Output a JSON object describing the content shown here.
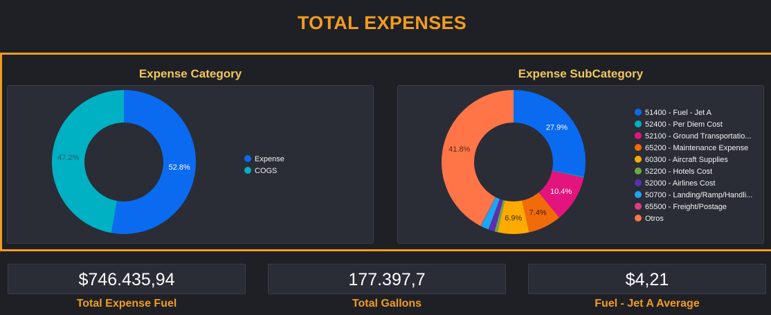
{
  "header": {
    "title": "TOTAL EXPENSES"
  },
  "charts": {
    "category_title": "Expense Category",
    "subcategory_title": "Expense SubCategory"
  },
  "chart_data": [
    {
      "type": "pie",
      "title": "Expense Category",
      "categories": [
        "Expense",
        "COGS"
      ],
      "values": [
        52.8,
        47.2
      ],
      "labels": [
        "52.8%",
        "47.2%"
      ],
      "colors": [
        "#0a6bf0",
        "#00b1c4"
      ],
      "legend_position": "right"
    },
    {
      "type": "pie",
      "title": "Expense SubCategory",
      "categories": [
        "51400 - Fuel - Jet A",
        "52400 - Per Diem Cost",
        "52100 - Ground Transportatio...",
        "65200 - Maintenance Expense",
        "60300 - Aircraft Supplies",
        "52200 - Hotels Cost",
        "52000 - Airlines Cost",
        "50700 - Landing/Ramp/Handli...",
        "65500 - Freight/Postage",
        "Otros"
      ],
      "values": [
        27.9,
        0.2,
        10.4,
        7.4,
        6.9,
        0.7,
        1.4,
        1.8,
        0.1,
        41.8
      ],
      "labels": [
        "27.9%",
        "",
        "10.4%",
        "7.4%",
        "6.9%",
        "",
        "",
        "",
        "",
        "41.8%"
      ],
      "colors": [
        "#0a6bf0",
        "#00b1c4",
        "#e4147e",
        "#f26b0b",
        "#ffaa00",
        "#6fa843",
        "#5b2fb0",
        "#1ea5f0",
        "#e03e7d",
        "#ff7547"
      ],
      "legend_position": "right"
    }
  ],
  "kpis": [
    {
      "value": "$746.435,94",
      "label": "Total Expense Fuel"
    },
    {
      "value": "177.397,7",
      "label": "Total Gallons"
    },
    {
      "value": "$4,21",
      "label": "Fuel - Jet A Average"
    }
  ]
}
